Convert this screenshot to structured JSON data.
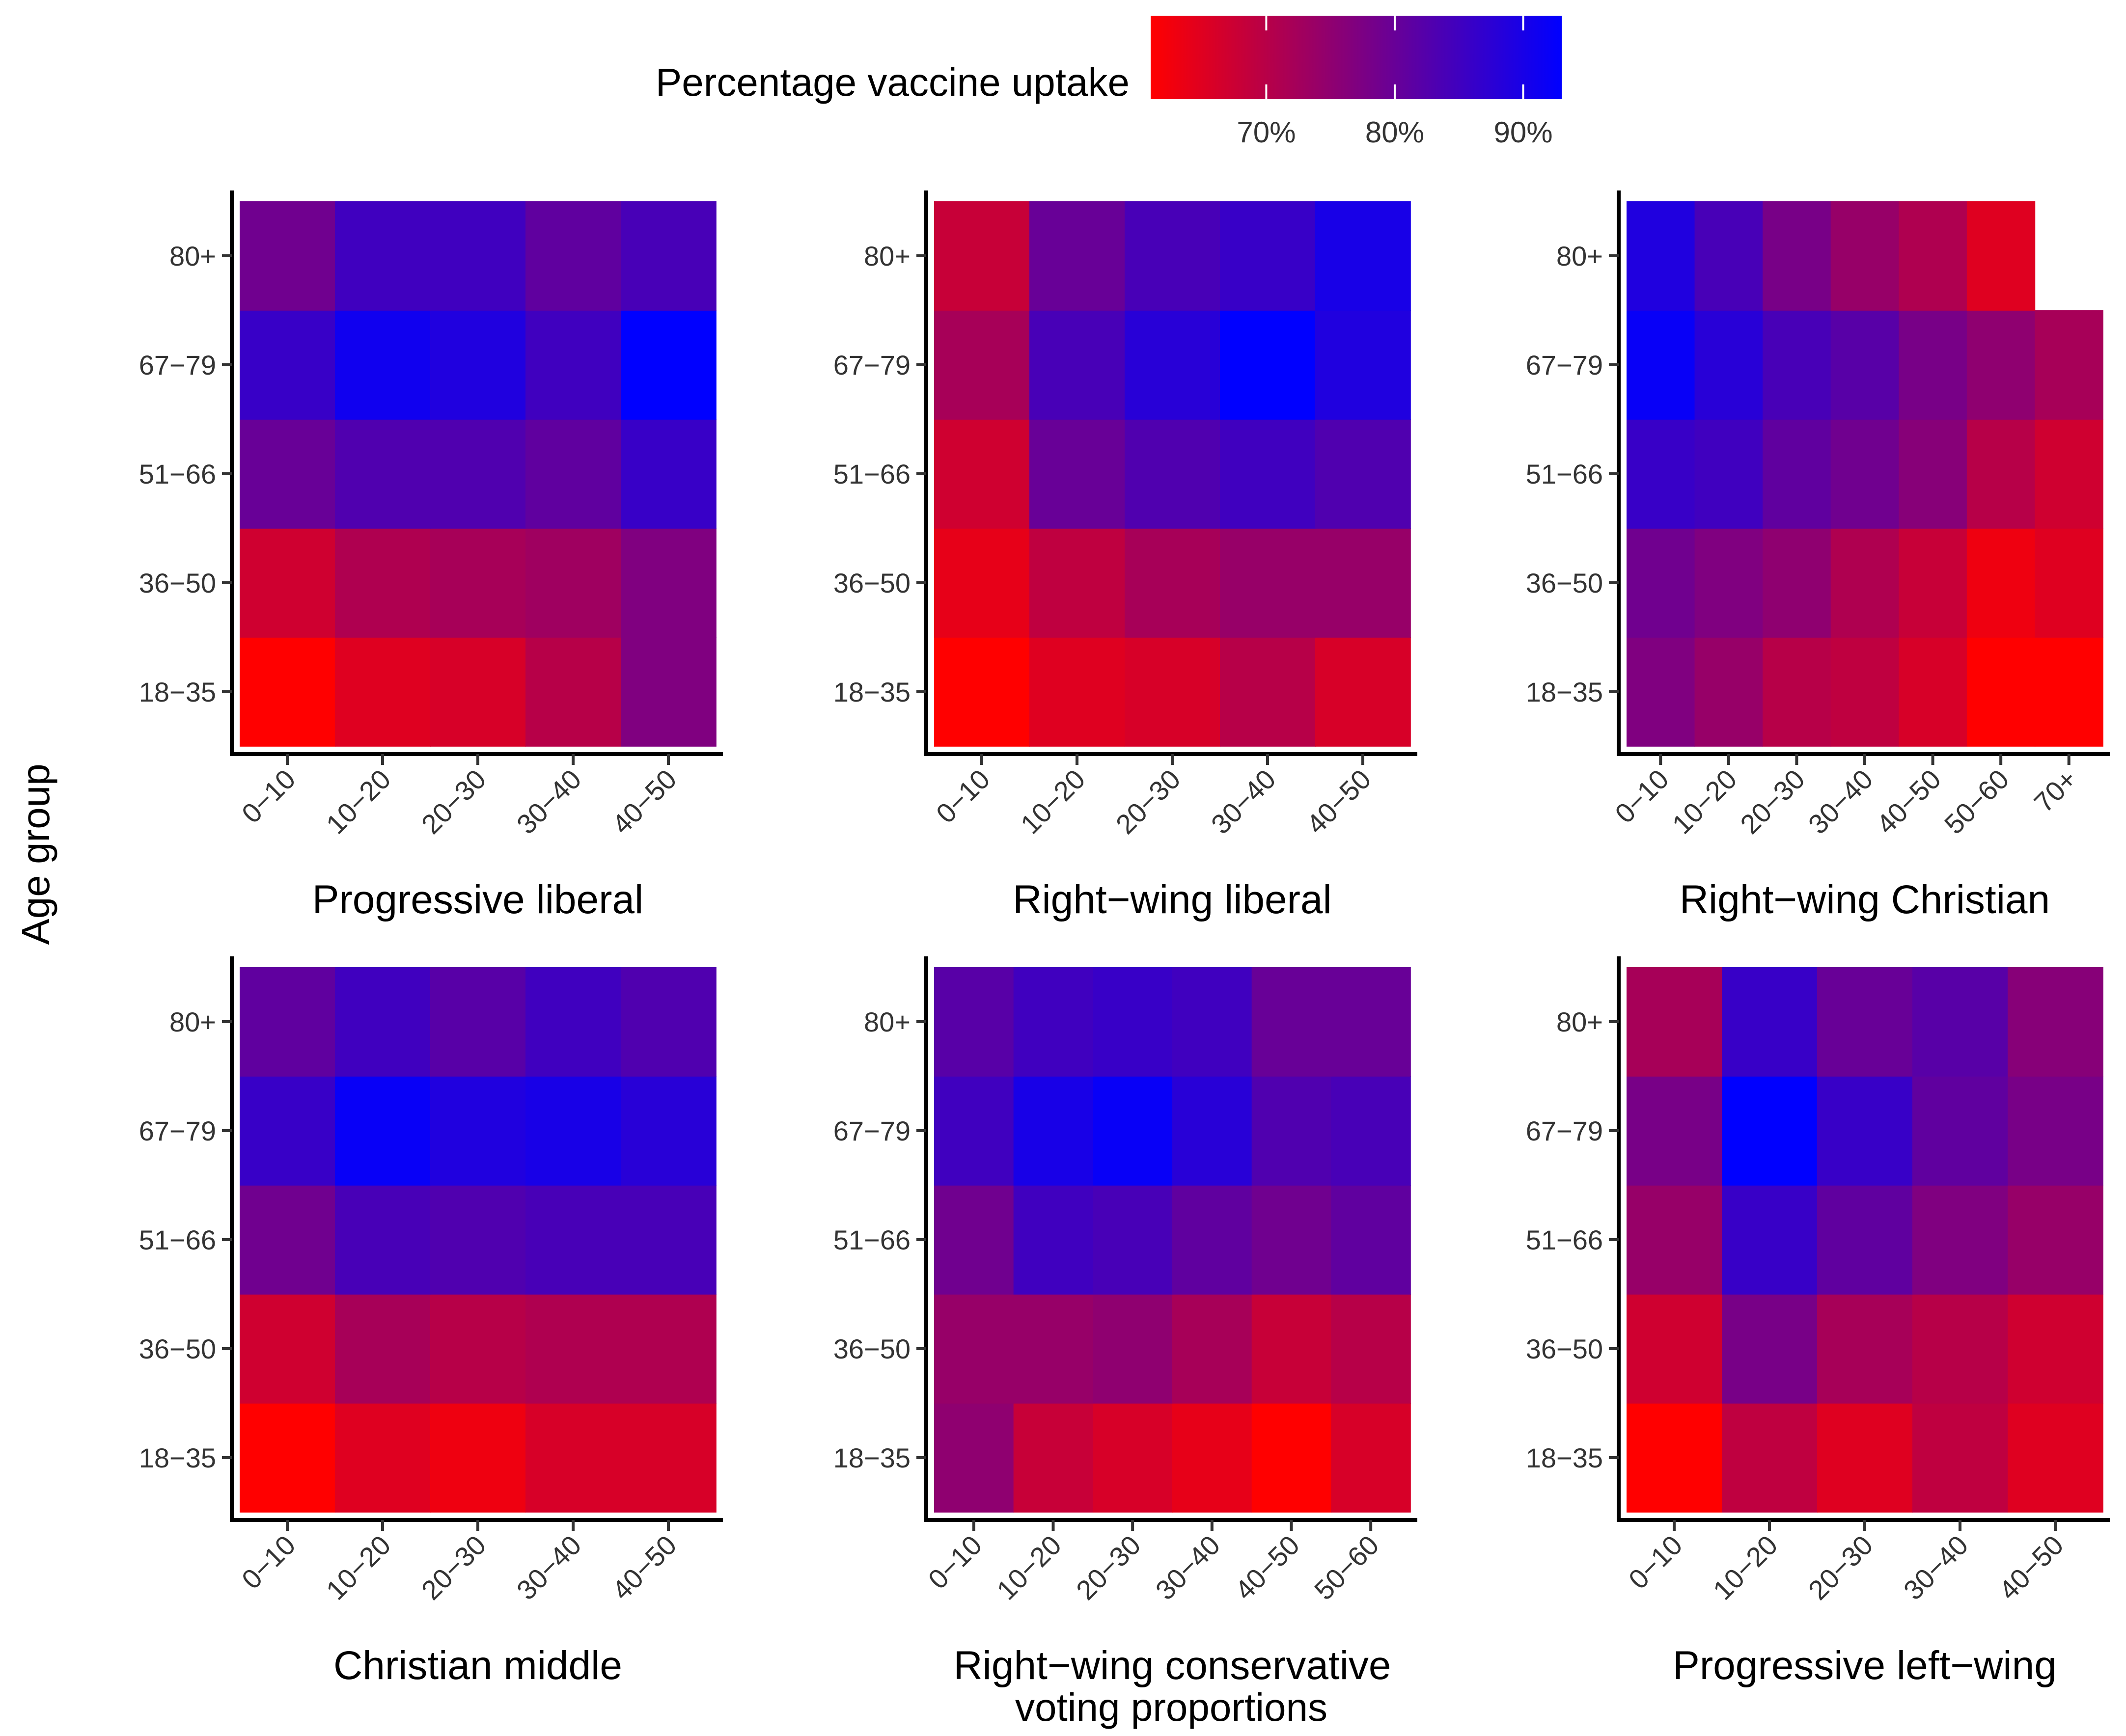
{
  "chart_data": {
    "type": "heatmap",
    "ylabel": "Age group",
    "xlabel": "voting proportions",
    "legend": {
      "title": "Percentage vaccine uptake",
      "ticks": [
        "70%",
        "80%",
        "90%"
      ],
      "tick_values": [
        70,
        80,
        90
      ],
      "range": [
        61,
        93
      ],
      "low_color": "#ff0000",
      "high_color": "#0000ff"
    },
    "age_groups": [
      "18−35",
      "36−50",
      "51−66",
      "67−79",
      "80+"
    ],
    "panels": [
      {
        "title": "Progressive liberal",
        "x_categories": [
          "0−10",
          "10−20",
          "20−30",
          "30−40",
          "40−50"
        ],
        "values": [
          [
            61,
            65,
            66,
            70,
            77
          ],
          [
            67,
            71,
            72,
            73,
            77
          ],
          [
            80,
            83,
            83,
            81,
            86
          ],
          [
            86,
            91,
            89,
            85,
            93
          ],
          [
            79,
            85,
            85,
            81,
            84
          ]
        ]
      },
      {
        "title": "Right−wing liberal",
        "x_categories": [
          "0−10",
          "10−20",
          "20−30",
          "30−40",
          "40−50"
        ],
        "values": [
          [
            61,
            65,
            66,
            70,
            66
          ],
          [
            64,
            69,
            72,
            74,
            74
          ],
          [
            67,
            80,
            83,
            85,
            83
          ],
          [
            72,
            84,
            88,
            93,
            89
          ],
          [
            68,
            80,
            84,
            86,
            90
          ]
        ]
      },
      {
        "title": "Right−wing Christian",
        "x_categories": [
          "0−10",
          "10−20",
          "20−30",
          "30−40",
          "40−50",
          "50−60",
          "70+"
        ],
        "values": [
          [
            77,
            74,
            70,
            69,
            66,
            61,
            61
          ],
          [
            79,
            77,
            75,
            71,
            68,
            63,
            65
          ],
          [
            86,
            85,
            81,
            79,
            76,
            70,
            67
          ],
          [
            92,
            88,
            84,
            82,
            78,
            75,
            72
          ],
          [
            89,
            84,
            78,
            74,
            71,
            65,
            null
          ]
        ]
      },
      {
        "title": "Christian middle",
        "x_categories": [
          "0−10",
          "10−20",
          "20−30",
          "30−40",
          "40−50"
        ],
        "values": [
          [
            61,
            65,
            63,
            66,
            66
          ],
          [
            67,
            72,
            70,
            71,
            71
          ],
          [
            79,
            84,
            83,
            84,
            84
          ],
          [
            86,
            92,
            89,
            90,
            88
          ],
          [
            81,
            85,
            82,
            85,
            83
          ]
        ]
      },
      {
        "title": "Right−wing conservative",
        "x_categories": [
          "0−10",
          "10−20",
          "20−30",
          "30−40",
          "40−50",
          "50−60"
        ],
        "values": [
          [
            75,
            68,
            66,
            64,
            61,
            66
          ],
          [
            74,
            74,
            75,
            72,
            68,
            70
          ],
          [
            79,
            85,
            84,
            81,
            79,
            81
          ],
          [
            85,
            90,
            92,
            88,
            83,
            84
          ],
          [
            82,
            85,
            86,
            85,
            80,
            80
          ]
        ]
      },
      {
        "title": "Progressive left−wing",
        "x_categories": [
          "0−10",
          "10−20",
          "20−30",
          "30−40",
          "40−50"
        ],
        "values": [
          [
            61,
            69,
            65,
            69,
            65
          ],
          [
            67,
            78,
            72,
            70,
            67
          ],
          [
            74,
            86,
            81,
            77,
            74
          ],
          [
            78,
            93,
            86,
            81,
            78
          ],
          [
            72,
            86,
            80,
            82,
            76
          ]
        ]
      }
    ]
  }
}
